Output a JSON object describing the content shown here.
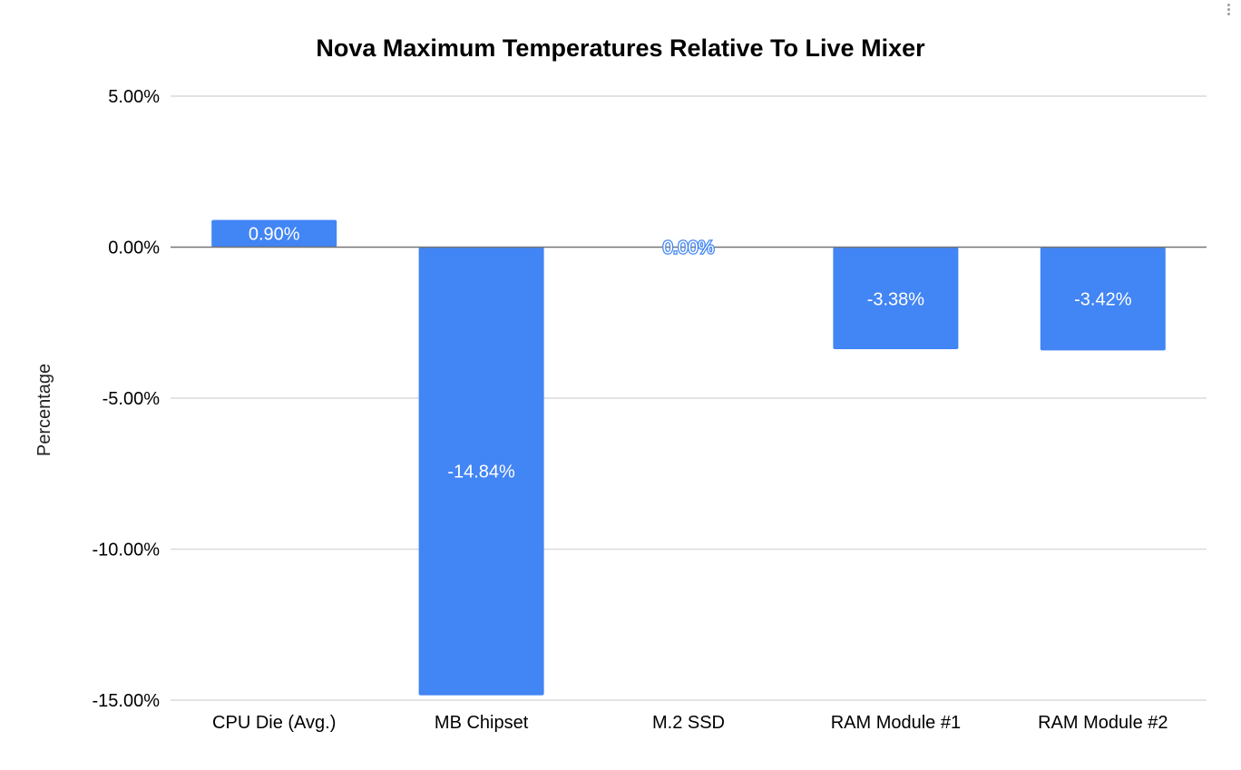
{
  "menu": {
    "icon": "more-vert-icon"
  },
  "chart_data": {
    "type": "bar",
    "title": "Nova Maximum Temperatures Relative To Live Mixer",
    "xlabel": "",
    "ylabel": "Percentage",
    "categories": [
      "CPU Die (Avg.)",
      "MB Chipset",
      "M.2 SSD",
      "RAM Module #1",
      "RAM Module #2"
    ],
    "values": [
      0.9,
      -14.84,
      0.0,
      -3.38,
      -3.42
    ],
    "data_labels": [
      "0.90%",
      "-14.84%",
      "0.00%",
      "-3.38%",
      "-3.42%"
    ],
    "ylim": [
      -15,
      5
    ],
    "yticks": [
      5,
      0,
      -5,
      -10,
      -15
    ],
    "ytick_labels": [
      "5.00%",
      "0.00%",
      "-5.00%",
      "-10.00%",
      "-15.00%"
    ],
    "grid": true,
    "legend": "none",
    "colors": {
      "bar": "#4285f4",
      "grid": "#dadada",
      "zero_line": "#757575",
      "label_on_bar": "#ffffff",
      "text": "#000000"
    }
  }
}
